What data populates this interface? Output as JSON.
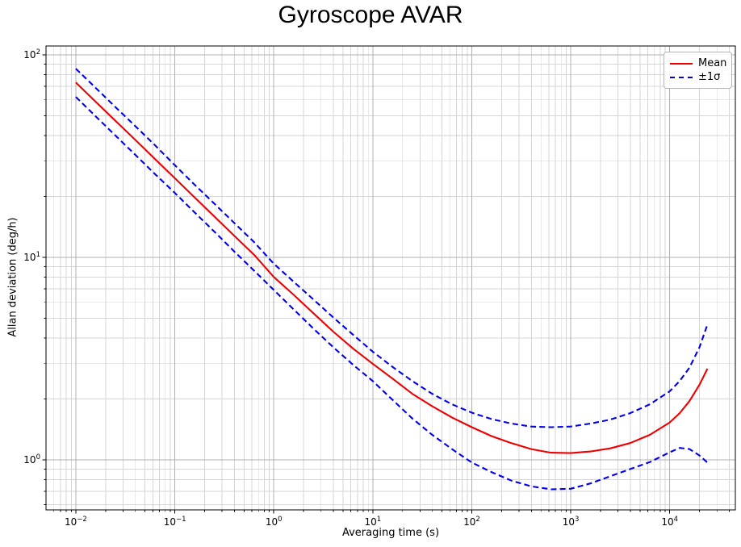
{
  "chart_data": {
    "type": "line",
    "title": "Gyroscope AVAR",
    "xlabel": "Averaging time (s)",
    "ylabel": "Allan deviation (deg/h)",
    "xscale": "log",
    "yscale": "log",
    "xlim": [
      0.005,
      46000
    ],
    "ylim": [
      0.566,
      110.6
    ],
    "grid": "both major and minor, light gray",
    "legend_position": "upper right",
    "x_tick_exponents": [
      -2,
      -1,
      0,
      1,
      2,
      3,
      4
    ],
    "y_tick_exponents": [
      0,
      1,
      2
    ],
    "x_tick_labels": [
      "10^-2",
      "10^-1",
      "10^0",
      "10^1",
      "10^2",
      "10^3",
      "10^4"
    ],
    "y_tick_labels": [
      "10^0",
      "10^1",
      "10^2"
    ],
    "x": [
      0.01,
      0.0158,
      0.0251,
      0.0398,
      0.0631,
      0.1,
      0.158,
      0.251,
      0.398,
      0.631,
      1,
      1.58,
      2.51,
      3.98,
      6.31,
      10,
      15.8,
      25.1,
      39.8,
      63.1,
      100,
      158,
      251,
      398,
      631,
      1000,
      1580,
      2510,
      3980,
      6310,
      10000,
      12600,
      15800,
      20000,
      24000
    ],
    "series": [
      {
        "name": "Mean",
        "color": "#ee0000",
        "style": "solid",
        "values": [
          73,
          58.8,
          47.3,
          38.1,
          30.6,
          24.6,
          19.8,
          15.9,
          12.8,
          10.3,
          8.0,
          6.55,
          5.3,
          4.3,
          3.55,
          2.98,
          2.52,
          2.12,
          1.84,
          1.62,
          1.45,
          1.31,
          1.21,
          1.13,
          1.085,
          1.08,
          1.1,
          1.14,
          1.21,
          1.33,
          1.53,
          1.7,
          1.95,
          2.35,
          2.82
        ]
      },
      {
        "name": "+1sigma",
        "color": "#0000ee",
        "style": "dashed",
        "values": [
          85.5,
          68.8,
          55.3,
          44.5,
          35.8,
          28.5,
          22.9,
          18.4,
          14.8,
          11.9,
          9.3,
          7.6,
          6.2,
          5.05,
          4.15,
          3.42,
          2.88,
          2.45,
          2.12,
          1.88,
          1.71,
          1.59,
          1.51,
          1.46,
          1.45,
          1.46,
          1.51,
          1.58,
          1.7,
          1.88,
          2.18,
          2.45,
          2.85,
          3.6,
          4.65
        ]
      },
      {
        "name": "-1sigma",
        "color": "#0000ee",
        "style": "dashed",
        "values": [
          62,
          49.8,
          40,
          32.1,
          25.8,
          20.8,
          16.7,
          13.4,
          10.7,
          8.6,
          6.9,
          5.55,
          4.45,
          3.6,
          2.95,
          2.45,
          1.98,
          1.6,
          1.33,
          1.13,
          0.97,
          0.87,
          0.79,
          0.74,
          0.715,
          0.72,
          0.765,
          0.83,
          0.9,
          0.975,
          1.09,
          1.145,
          1.13,
          1.05,
          0.97
        ]
      }
    ],
    "legend": [
      {
        "label": "Mean",
        "color": "#ee0000",
        "style": "solid"
      },
      {
        "label": "±1σ",
        "color": "#0000ee",
        "style": "dashed"
      }
    ]
  },
  "colors": {
    "mean_line": "#ee0000",
    "sigma_line": "#0000ee",
    "grid_major": "#b0b0b0",
    "grid_minor": "#d6d6d6",
    "spine": "#000000",
    "background": "#ffffff"
  }
}
